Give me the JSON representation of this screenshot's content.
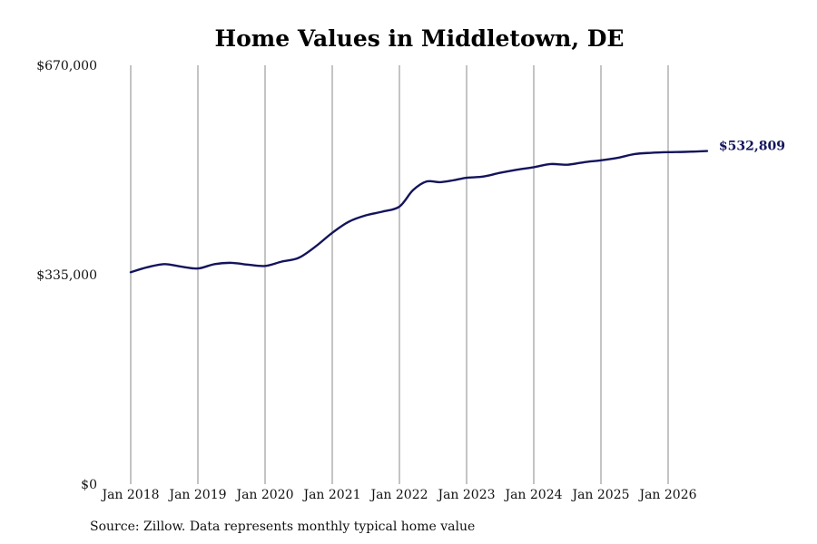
{
  "chart_data": {
    "type": "line",
    "title": "Home Values in Middletown, DE",
    "source": "Source: Zillow. Data represents monthly typical home value",
    "ylim": [
      0,
      670000
    ],
    "y_tick_labels": [
      "$670,000",
      "$335,000",
      "$0"
    ],
    "y_tick_values": [
      670000,
      335000,
      0
    ],
    "x_tick_labels": [
      "Jan 2018",
      "Jan 2019",
      "Jan 2020",
      "Jan 2021",
      "Jan 2022",
      "Jan 2023",
      "Jan 2024",
      "Jan 2025",
      "Jan 2026"
    ],
    "x_tick_values": [
      2018,
      2019,
      2020,
      2021,
      2022,
      2023,
      2024,
      2025,
      2026
    ],
    "xlim": [
      2018,
      2026.6
    ],
    "grid": "vertical",
    "line_color": "#13145c",
    "end_label": "$532,809",
    "series": [
      {
        "x": [
          2018.0,
          2018.25,
          2018.5,
          2018.75,
          2019.0,
          2019.25,
          2019.5,
          2019.75,
          2020.0,
          2020.25,
          2020.5,
          2020.75,
          2021.0,
          2021.25,
          2021.5,
          2021.75,
          2022.0,
          2022.2,
          2022.4,
          2022.6,
          2022.8,
          2023.0,
          2023.25,
          2023.5,
          2023.75,
          2024.0,
          2024.25,
          2024.5,
          2024.75,
          2025.0,
          2025.25,
          2025.5,
          2025.75,
          2026.0,
          2026.25,
          2026.58
        ],
        "y": [
          339000,
          347000,
          352000,
          348000,
          345000,
          352000,
          354000,
          351000,
          349000,
          356000,
          362000,
          380000,
          402000,
          420000,
          430000,
          436000,
          444000,
          470000,
          484000,
          483000,
          486000,
          490000,
          492000,
          498000,
          503000,
          507000,
          512000,
          511000,
          515000,
          518000,
          522000,
          528000,
          530000,
          531000,
          531500,
          532809
        ]
      }
    ]
  }
}
